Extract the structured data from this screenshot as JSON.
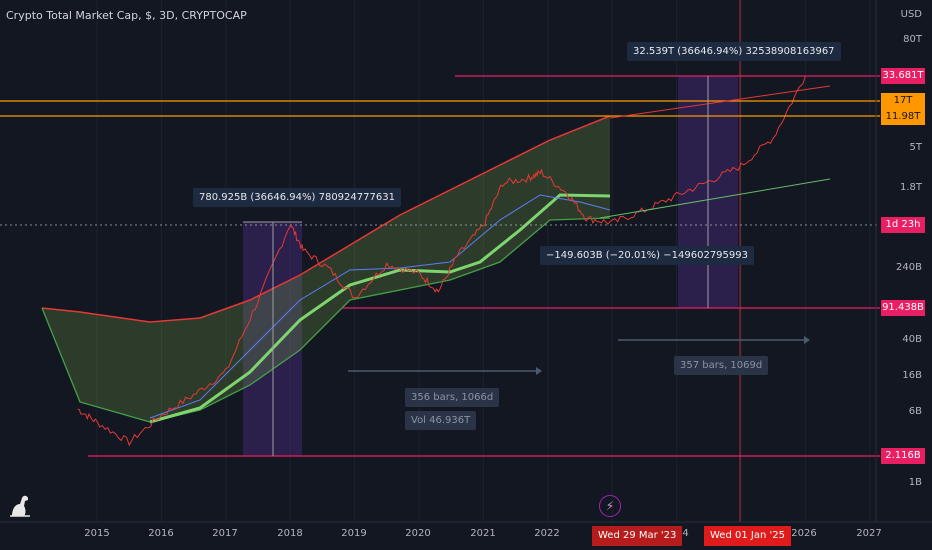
{
  "header": {
    "title": "Crypto Total Market Cap, $, 3D, CRYPTOCAP"
  },
  "yaxis": {
    "currency": "USD",
    "labels": [
      "80T",
      "5T",
      "1.8T",
      "240B",
      "40B",
      "16B",
      "6B",
      "1B"
    ],
    "tags": [
      {
        "label": "33.681T",
        "color": "#e91e63"
      },
      {
        "label": "17T",
        "color": "#ff9800"
      },
      {
        "label": "11.98T",
        "color": "#ff9800"
      },
      {
        "label": "1d 23h",
        "color": "#e91e63"
      },
      {
        "label": "91.438B",
        "color": "#e91e63"
      },
      {
        "label": "2.116B",
        "color": "#e91e63"
      }
    ]
  },
  "xaxis": {
    "labels": [
      "2015",
      "2016",
      "2017",
      "2018",
      "2019",
      "2020",
      "2021",
      "2022",
      "2024",
      "2026",
      "2027"
    ]
  },
  "date_tags": [
    {
      "label": "Wed 29 Mar '23",
      "color": "#b71c1c"
    },
    {
      "label": "Wed 01 Jan '25",
      "color": "#e01b1b"
    }
  ],
  "annotations": {
    "rally_2017": "780.925B (36646.94%) 780924777631",
    "rally_2024": "32.539T (36646.94%) 32538908163967",
    "drop_2022": "−149.603B (−20.01%) −149602795993",
    "bars_2018": "356 bars, 1066d",
    "vol_2018": "Vol 46.936T",
    "bars_2024": "357 bars, 1069d"
  },
  "colors": {
    "bg": "#131722",
    "pink": "#e91e63",
    "orange": "#ff9800",
    "band": "#e53935",
    "green": "#66bb6a",
    "purple": "#673ab7"
  },
  "chart_data": {
    "type": "line",
    "title": "Crypto Total Market Cap, $, 3D, CRYPTOCAP",
    "yscale": "log",
    "x": [
      2014.7,
      2015.0,
      2015.5,
      2016.0,
      2016.5,
      2017.0,
      2017.5,
      2018.0,
      2018.2,
      2018.6,
      2019.0,
      2019.5,
      2020.0,
      2020.3,
      2020.6,
      2021.0,
      2021.3,
      2021.7,
      2021.9,
      2022.3,
      2022.6,
      2023.0,
      2023.5,
      2024.0,
      2024.5,
      2025.0,
      2025.5,
      2026.0
    ],
    "y": [
      7000000000.0,
      5000000000.0,
      3000000000.0,
      6000000000.0,
      10000000000.0,
      18000000000.0,
      110000000000.0,
      780000000000.0,
      400000000000.0,
      250000000000.0,
      120000000000.0,
      280000000000.0,
      220000000000.0,
      140000000000.0,
      350000000000.0,
      750000000000.0,
      2200000000000.0,
      2500000000000.0,
      2900000000000.0,
      1700000000000.0,
      900000000000.0,
      800000000000.0,
      1100000000000.0,
      1600000000000.0,
      2300000000000.0,
      3400000000000.0,
      7000000000000.0,
      33700000000000.0
    ],
    "levels": {
      "pink": [
        33681000000000.0,
        91438000000.0,
        2116000000.0
      ],
      "orange": [
        17000000000000.0,
        11980000000000.0
      ]
    }
  }
}
